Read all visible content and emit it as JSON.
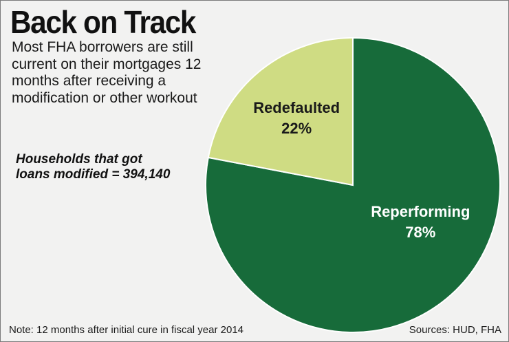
{
  "header": {
    "title": "Back on Track",
    "subtitle": "Most FHA borrowers are still current on their mortgages 12 months after receiving a modification or other workout"
  },
  "callout": {
    "line1": "Households that got",
    "line2": "loans modified = 394,140"
  },
  "footer": {
    "note": "Note: 12 months after initial cure in fiscal year 2014",
    "sources": "Sources: HUD, FHA"
  },
  "chart_data": {
    "type": "pie",
    "title": "Back on Track",
    "total": 394140,
    "slices": [
      {
        "name": "Reperforming",
        "value": 78,
        "label": "78%",
        "color": "#176b3a",
        "text_color": "#ffffff"
      },
      {
        "name": "Redefaulted",
        "value": 22,
        "label": "22%",
        "color": "#cfdc83",
        "text_color": "#1a1a1a"
      }
    ]
  },
  "colors": {
    "background": "#f2f2f1",
    "border": "#7a7a7a",
    "slice_edge": "#ffffff"
  }
}
